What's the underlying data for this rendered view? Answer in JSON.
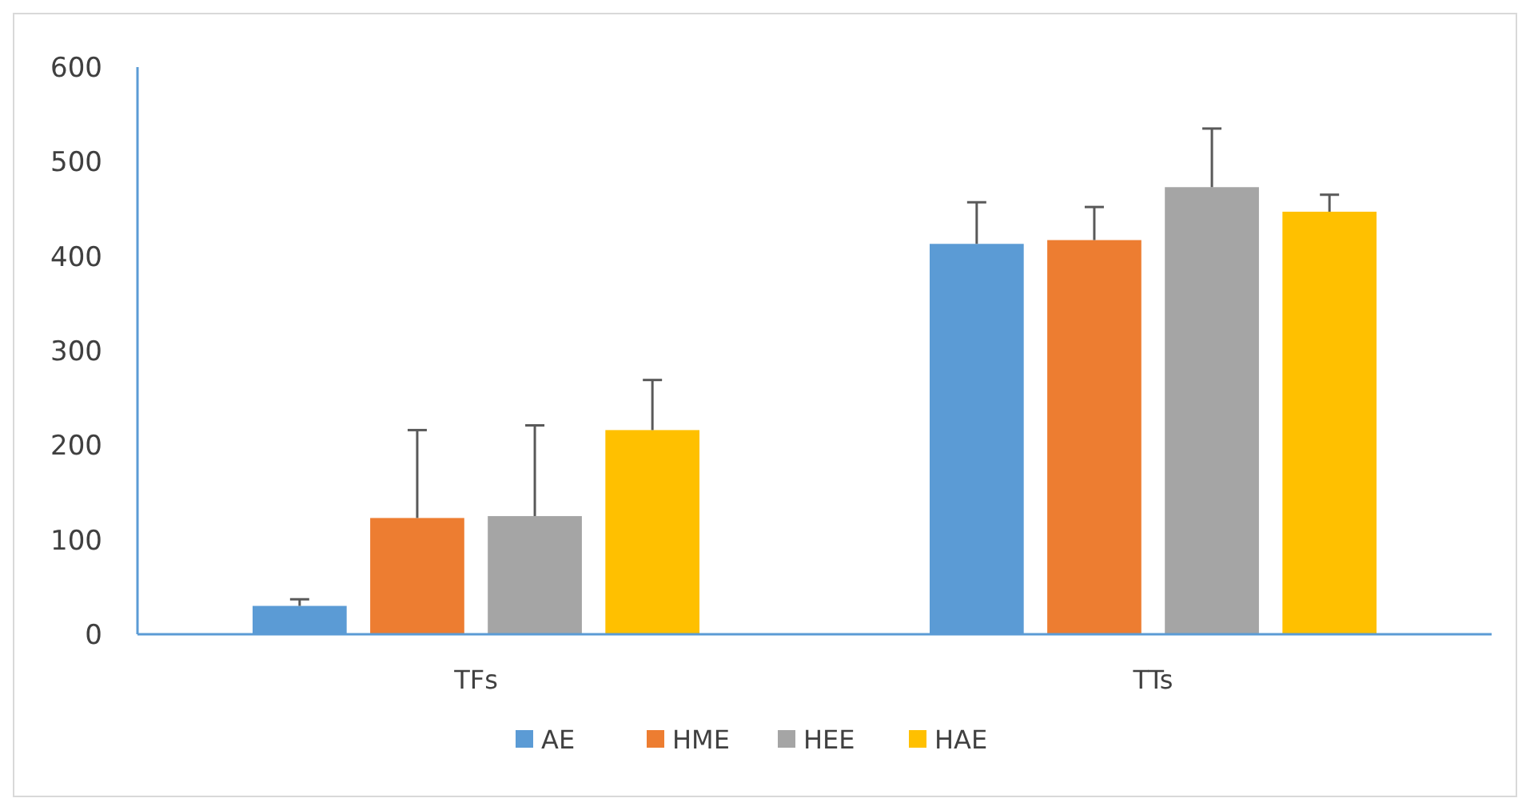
{
  "chart_data": {
    "type": "bar",
    "categories": [
      "TFs",
      "TTs"
    ],
    "series": [
      {
        "name": "AE",
        "color": "#5b9bd5",
        "values": [
          30,
          413
        ],
        "errors": [
          [
            30,
            37
          ],
          [
            413,
            457
          ]
        ]
      },
      {
        "name": "HME",
        "color": "#ed7d31",
        "values": [
          123,
          417
        ],
        "errors": [
          [
            123,
            216
          ],
          [
            417,
            452
          ]
        ]
      },
      {
        "name": "HEE",
        "color": "#a5a5a5",
        "values": [
          125,
          473
        ],
        "errors": [
          [
            125,
            221
          ],
          [
            473,
            535
          ]
        ]
      },
      {
        "name": "HAE",
        "color": "#ffc000",
        "values": [
          216,
          447
        ],
        "errors": [
          [
            216,
            269
          ],
          [
            447,
            465
          ]
        ]
      }
    ],
    "ylim": [
      0,
      600
    ],
    "yticks": [
      0,
      100,
      200,
      300,
      400,
      500,
      600
    ],
    "grid": false,
    "legend": "bottom"
  }
}
